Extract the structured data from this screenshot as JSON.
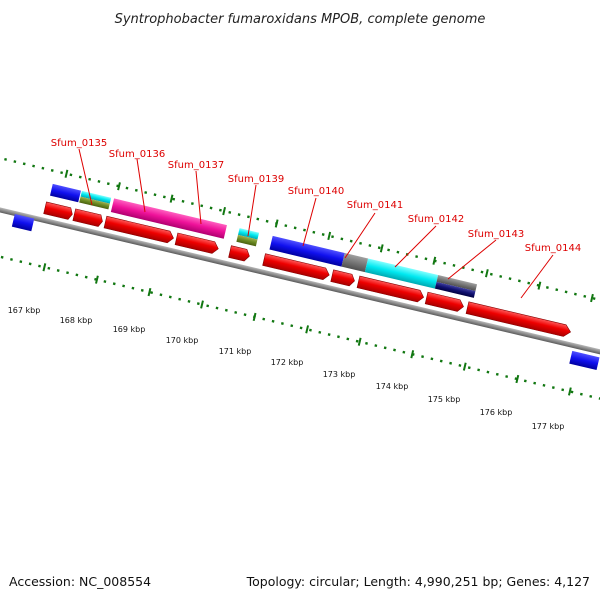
{
  "title": "Syntrophobacter fumaroxidans MPOB, complete genome",
  "footer": {
    "accession": "Accession: NC_008554",
    "summary": "Topology: circular; Length: 4,990,251 bp; Genes: 4,127"
  },
  "colors": {
    "backbone": "#808080",
    "cds_arrow": "#ee0000",
    "label": "#dd0000",
    "tick": "#117711"
  },
  "genes": [
    {
      "label": "Sfum_0135"
    },
    {
      "label": "Sfum_0136"
    },
    {
      "label": "Sfum_0137"
    },
    {
      "label": "Sfum_0139"
    },
    {
      "label": "Sfum_0140"
    },
    {
      "label": "Sfum_0141"
    },
    {
      "label": "Sfum_0142"
    },
    {
      "label": "Sfum_0143"
    },
    {
      "label": "Sfum_0144"
    }
  ],
  "scale": [
    "167 kbp",
    "168 kbp",
    "169 kbp",
    "170 kbp",
    "171 kbp",
    "172 kbp",
    "173 kbp",
    "174 kbp",
    "175 kbp",
    "176 kbp",
    "177 kbp"
  ]
}
